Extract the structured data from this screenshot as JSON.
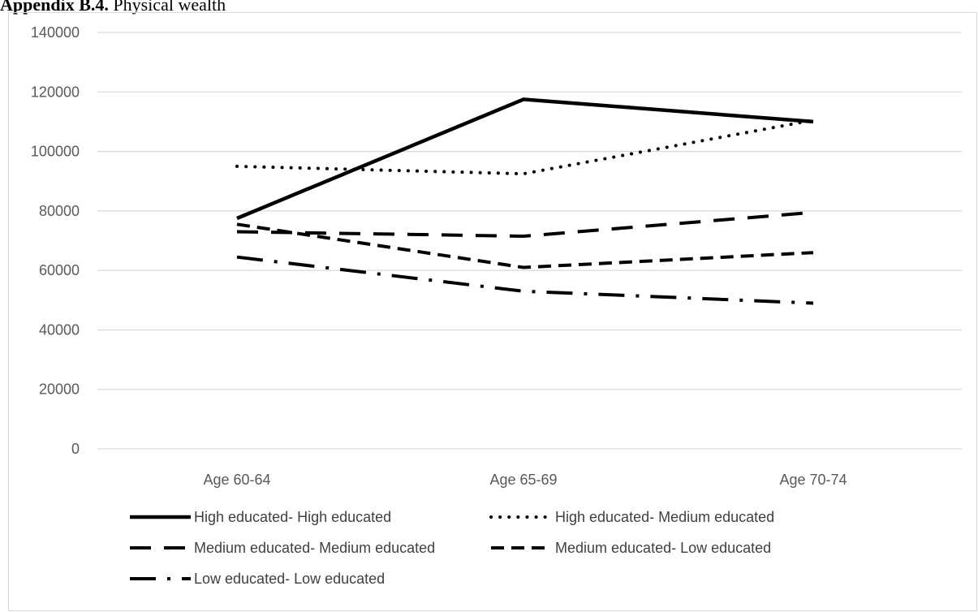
{
  "page": {
    "heading_bold": "Appendix B.4.",
    "heading_rest": " Physical wealth"
  },
  "chart_data": {
    "type": "line",
    "categories": [
      "Age 60-64",
      "Age 65-69",
      "Age 70-74"
    ],
    "ylim": [
      0,
      140000
    ],
    "yticks": [
      0,
      20000,
      40000,
      60000,
      80000,
      100000,
      120000,
      140000
    ],
    "grid": true,
    "legend_position": "bottom",
    "series": [
      {
        "name": "High educated- High educated",
        "values": [
          77500,
          117500,
          110000
        ],
        "dash": "solid"
      },
      {
        "name": "High educated- Medium educated",
        "values": [
          95000,
          92500,
          110500
        ],
        "dash": "dot"
      },
      {
        "name": "Medium educated- Medium educated",
        "values": [
          73000,
          71500,
          79500
        ],
        "dash": "longdash"
      },
      {
        "name": "Medium educated- Low educated",
        "values": [
          75500,
          61000,
          66000
        ],
        "dash": "dash"
      },
      {
        "name": "Low educated- Low educated",
        "values": [
          64500,
          53000,
          49000
        ],
        "dash": "longdashdot"
      }
    ],
    "colors": {
      "line": "#000000",
      "grid": "#d9d9d9",
      "axis": "#d9d9d9",
      "text": "#595959"
    }
  }
}
